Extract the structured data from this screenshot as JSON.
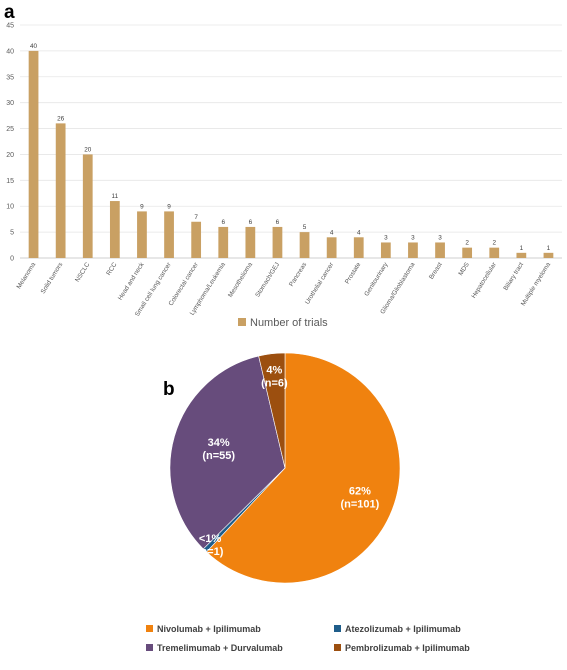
{
  "panels": {
    "a": "a",
    "b": "b"
  },
  "chart_data": [
    {
      "type": "bar",
      "title": "",
      "xlabel": "",
      "ylabel": "",
      "ylim": [
        0,
        45
      ],
      "yticks": [
        0,
        5,
        10,
        15,
        20,
        25,
        30,
        35,
        40,
        45
      ],
      "grid": true,
      "legend_position": "bottom",
      "bar_color": "#c9a063",
      "categories": [
        "Melanoma",
        "Solid tumors",
        "NSCLC",
        "RCC",
        "Head and neck",
        "Small cell lung cancer",
        "Colorectal cancer",
        "Lymphoma/Leukemia",
        "Mesothelioma",
        "Stomach/GEJ",
        "Pancreas",
        "Urothelial cancer",
        "Prostate",
        "Genitourinary",
        "Glioma/Glioblastoma",
        "Breast",
        "MDS",
        "Hepatocellular",
        "Biliary tract",
        "Multiple myeloma"
      ],
      "series": [
        {
          "name": "Number of trials",
          "values": [
            40,
            26,
            20,
            11,
            9,
            9,
            7,
            6,
            6,
            6,
            5,
            4,
            4,
            3,
            3,
            3,
            2,
            2,
            1,
            1
          ]
        }
      ]
    },
    {
      "type": "pie",
      "title": "",
      "legend_position": "bottom",
      "slices": [
        {
          "name": "Nivolumab + Ipilimumab",
          "percent_label": "62%",
          "count_label": "(n=101)",
          "value": 101,
          "color": "#f0820f"
        },
        {
          "name": "Atezolizumab + Ipilimumab",
          "percent_label": "<1%",
          "count_label": "(n=1)",
          "value": 1,
          "color": "#1f5d8a"
        },
        {
          "name": "Tremelimumab + Durvalumab",
          "percent_label": "34%",
          "count_label": "(n=55)",
          "value": 55,
          "color": "#674c7c"
        },
        {
          "name": "Pembrolizumab + Ipilimumab",
          "percent_label": "4%",
          "count_label": "(n=6)",
          "value": 6,
          "color": "#9c4f0f"
        }
      ]
    }
  ]
}
